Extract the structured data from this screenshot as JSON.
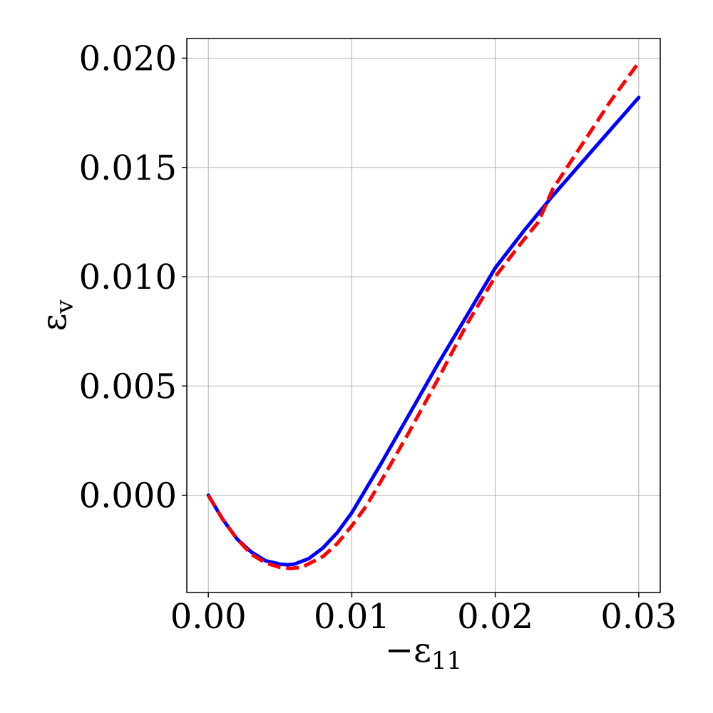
{
  "chart_data": {
    "type": "line",
    "title": "",
    "xlabel": {
      "main": "−ε",
      "sub": "11"
    },
    "ylabel": {
      "main": "ε",
      "sub": "v"
    },
    "xlim": [
      -0.0015,
      0.0315
    ],
    "ylim": [
      -0.00445,
      0.0209
    ],
    "grid": true,
    "x_ticks": [
      {
        "value": 0.0,
        "label": "0.00"
      },
      {
        "value": 0.01,
        "label": "0.01"
      },
      {
        "value": 0.02,
        "label": "0.02"
      },
      {
        "value": 0.03,
        "label": "0.03"
      }
    ],
    "y_ticks": [
      {
        "value": 0.0,
        "label": "0.000"
      },
      {
        "value": 0.005,
        "label": "0.005"
      },
      {
        "value": 0.01,
        "label": "0.010"
      },
      {
        "value": 0.015,
        "label": "0.015"
      },
      {
        "value": 0.02,
        "label": "0.020"
      }
    ],
    "series": [
      {
        "color": "#0000ff",
        "style": "solid",
        "x": [
          0.0,
          0.001,
          0.002,
          0.003,
          0.004,
          0.005,
          0.0055,
          0.006,
          0.007,
          0.008,
          0.009,
          0.01,
          0.011,
          0.012,
          0.014,
          0.016,
          0.018,
          0.02,
          0.022,
          0.024,
          0.026,
          0.028,
          0.03
        ],
        "y": [
          0.0,
          -0.0011,
          -0.002,
          -0.0026,
          -0.003,
          -0.00315,
          -0.00318,
          -0.00315,
          -0.0029,
          -0.0024,
          -0.0017,
          -0.0008,
          0.0003,
          0.0014,
          0.0037,
          0.006,
          0.0082,
          0.0104,
          0.0121,
          0.0137,
          0.0152,
          0.0167,
          0.0182
        ]
      },
      {
        "color": "#ff0000",
        "style": "dashed",
        "x": [
          0.0,
          0.001,
          0.002,
          0.003,
          0.004,
          0.005,
          0.0057,
          0.0065,
          0.008,
          0.009,
          0.01,
          0.011,
          0.012,
          0.014,
          0.016,
          0.018,
          0.02,
          0.022,
          0.023,
          0.024,
          0.026,
          0.028,
          0.03
        ],
        "y": [
          0.0,
          -0.0011,
          -0.002,
          -0.0027,
          -0.0031,
          -0.0033,
          -0.00335,
          -0.0033,
          -0.0028,
          -0.0022,
          -0.0014,
          -0.0005,
          0.0006,
          0.0029,
          0.0053,
          0.0078,
          0.01,
          0.0117,
          0.0125,
          0.014,
          0.016,
          0.018,
          0.0198
        ]
      }
    ]
  }
}
